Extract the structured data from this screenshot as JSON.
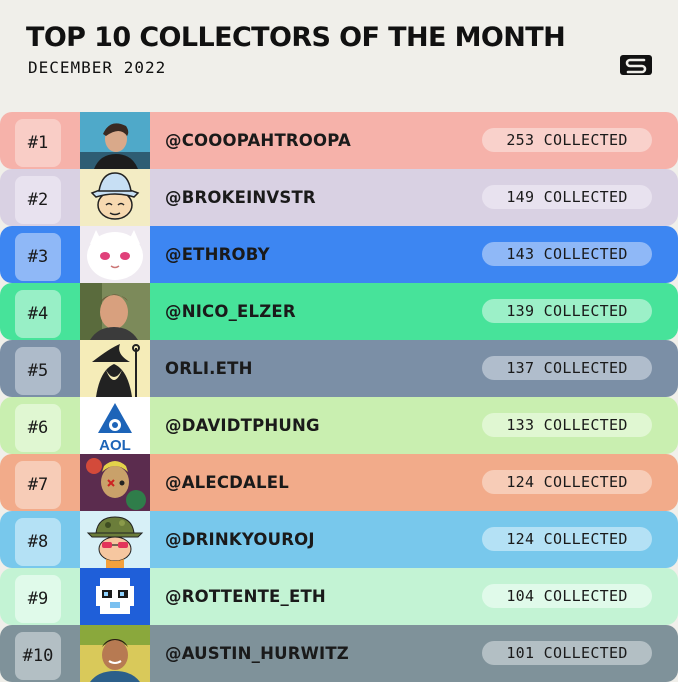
{
  "header": {
    "title": "TOP 10 COLLECTORS OF THE MONTH",
    "subtitle": "DECEMBER 2022",
    "logo_icon": "s-logo-icon"
  },
  "collectors": [
    {
      "rank": "#1",
      "handle": "@COOOPAHTROOPA",
      "collected": "253 COLLECTED",
      "row_color": "#f6b2aa",
      "rank_color": "#f9cdc6",
      "pill_color": "#f9d1cb",
      "avatar": "photo-avatar"
    },
    {
      "rank": "#2",
      "handle": "@BROKEINVSTR",
      "collected": "149 COLLECTED",
      "row_color": "#d9d1e3",
      "rank_color": "#e8e2ef",
      "pill_color": "#e8e2ef",
      "avatar": "bucket-hat-cartoon-avatar"
    },
    {
      "rank": "#3",
      "handle": "@ETHROBY",
      "collected": "143 COLLECTED",
      "row_color": "#3d86f2",
      "rank_color": "#8fb8f7",
      "pill_color": "#8fb8f7",
      "avatar": "white-creature-avatar"
    },
    {
      "rank": "#4",
      "handle": "@NICO_ELZER",
      "collected": "139 COLLECTED",
      "row_color": "#47e39a",
      "rank_color": "#98efc6",
      "pill_color": "#9cf0c8",
      "avatar": "photo-avatar"
    },
    {
      "rank": "#5",
      "handle": "ORLI.ETH",
      "collected": "137 COLLECTED",
      "row_color": "#7b8fa6",
      "rank_color": "#aebbca",
      "pill_color": "#b0bdcc",
      "avatar": "wizard-avatar"
    },
    {
      "rank": "#6",
      "handle": "@DAVIDTPHUNG",
      "collected": "133 COLLECTED",
      "row_color": "#c9efb0",
      "rank_color": "#e0f7d2",
      "pill_color": "#e0f7d2",
      "avatar": "aol-logo-avatar"
    },
    {
      "rank": "#7",
      "handle": "@ALECDALEL",
      "collected": "124 COLLECTED",
      "row_color": "#f2ab8a",
      "rank_color": "#f7ccb7",
      "pill_color": "#f7ccb7",
      "avatar": "art-avatar"
    },
    {
      "rank": "#8",
      "handle": "@DRINKYOUROJ",
      "collected": "124 COLLECTED",
      "row_color": "#78c8ec",
      "rank_color": "#b4e1f5",
      "pill_color": "#b4e1f5",
      "avatar": "camo-hat-cartoon-avatar"
    },
    {
      "rank": "#9",
      "handle": "@ROTTENTE_ETH",
      "collected": "104 COLLECTED",
      "row_color": "#c3f3d4",
      "rank_color": "#e0faea",
      "pill_color": "#e0faea",
      "avatar": "pixel-duck-avatar"
    },
    {
      "rank": "#10",
      "handle": "@AUSTIN_HURWITZ",
      "collected": "101 COLLECTED",
      "row_color": "#7f929a",
      "rank_color": "#b3bfc4",
      "pill_color": "#b3bfc4",
      "avatar": "photo-avatar"
    }
  ]
}
